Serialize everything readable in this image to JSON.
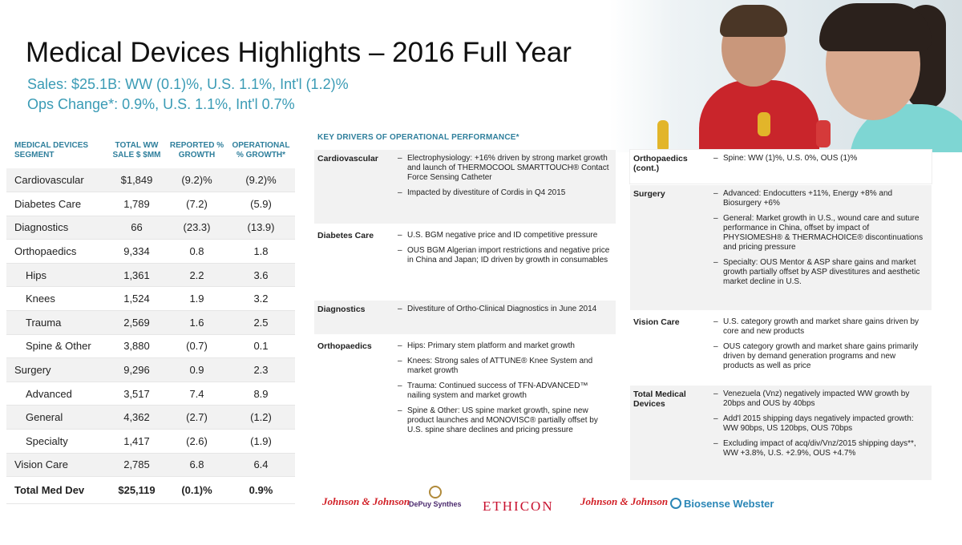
{
  "title": "Medical Devices Highlights – 2016 Full Year",
  "sales_line": "Sales: $25.1B: WW (0.1)%, U.S. 1.1%, Int'l (1.2)%",
  "ops_line": "Ops Change*: 0.9%, U.S. 1.1%, Int'l 0.7%",
  "table": {
    "headers": [
      "MEDICAL DEVICES SEGMENT",
      "TOTAL WW SALE $ $MM",
      "REPORTED % GROWTH",
      "OPERATIONAL % GROWTH*"
    ],
    "rows": [
      {
        "name": "Cardiovascular",
        "sales": "$1,849",
        "reported": "(9.2)%",
        "operational": "(9.2)%",
        "sub": false
      },
      {
        "name": "Diabetes Care",
        "sales": "1,789",
        "reported": "(7.2)",
        "operational": "(5.9)",
        "sub": false
      },
      {
        "name": "Diagnostics",
        "sales": "66",
        "reported": "(23.3)",
        "operational": "(13.9)",
        "sub": false
      },
      {
        "name": "Orthopaedics",
        "sales": "9,334",
        "reported": "0.8",
        "operational": "1.8",
        "sub": false
      },
      {
        "name": "Hips",
        "sales": "1,361",
        "reported": "2.2",
        "operational": "3.6",
        "sub": true
      },
      {
        "name": "Knees",
        "sales": "1,524",
        "reported": "1.9",
        "operational": "3.2",
        "sub": true
      },
      {
        "name": "Trauma",
        "sales": "2,569",
        "reported": "1.6",
        "operational": "2.5",
        "sub": true
      },
      {
        "name": "Spine & Other",
        "sales": "3,880",
        "reported": "(0.7)",
        "operational": "0.1",
        "sub": true
      },
      {
        "name": "Surgery",
        "sales": "9,296",
        "reported": "0.9",
        "operational": "2.3",
        "sub": false
      },
      {
        "name": "Advanced",
        "sales": "3,517",
        "reported": "7.4",
        "operational": "8.9",
        "sub": true
      },
      {
        "name": "General",
        "sales": "4,362",
        "reported": "(2.7)",
        "operational": "(1.2)",
        "sub": true
      },
      {
        "name": "Specialty",
        "sales": "1,417",
        "reported": "(2.6)",
        "operational": "(1.9)",
        "sub": true
      },
      {
        "name": "Vision Care",
        "sales": "2,785",
        "reported": "6.8",
        "operational": "6.4",
        "sub": false
      }
    ],
    "total": {
      "name": "Total Med Dev",
      "sales": "$25,119",
      "reported": "(0.1)%",
      "operational": "0.9%"
    }
  },
  "drivers_title": "KEY DRIVERS OF OPERATIONAL PERFORMANCE*",
  "drivers": [
    {
      "label": "Cardiovascular",
      "items": [
        "Electrophysiology: +16% driven by strong market growth and launch of THERMOCOOL SMARTTOUCH® Contact Force Sensing Catheter",
        "Impacted by divestiture of Cordis in Q4 2015"
      ]
    },
    {
      "label": "Diabetes Care",
      "items": [
        "U.S. BGM negative price and ID competitive pressure",
        "OUS BGM Algerian import restrictions and negative price in China and Japan; ID driven by growth in consumables"
      ]
    },
    {
      "label": "Diagnostics",
      "items": [
        "Divestiture of Ortho-Clinical Diagnostics in June 2014"
      ]
    },
    {
      "label": "Orthopaedics",
      "items": [
        "Hips: Primary stem platform and market growth",
        "Knees: Strong sales of ATTUNE® Knee System and market growth",
        "Trauma: Continued success of TFN-ADVANCED™ nailing system and market growth",
        "Spine & Other: US spine market growth, spine new product launches and MONOVISC® partially offset by U.S. spine share declines and pricing pressure"
      ]
    },
    {
      "label": "Orthopaedics (cont.)",
      "items": [
        "Spine: WW (1)%, U.S. 0%, OUS (1)%"
      ]
    },
    {
      "label": "Surgery",
      "items": [
        "Advanced: Endocutters +11%, Energy +8% and Biosurgery +6%",
        "General: Market growth in U.S., wound care and suture performance in China, offset by impact of PHYSIOMESH® & THERMACHOICE® discontinuations and pricing pressure",
        "Specialty: OUS Mentor & ASP share gains and market growth partially offset by ASP divestitures and aesthetic market decline in U.S."
      ]
    },
    {
      "label": "Vision Care",
      "items": [
        "U.S. category growth and market share gains driven by core and new products",
        "OUS category growth and market share gains primarily driven by demand generation programs and new products as well as price"
      ]
    },
    {
      "label": "Total Medical Devices",
      "items": [
        "Venezuela (Vnz) negatively impacted WW growth by 20bps and OUS by 40bps",
        "Add'l 2015 shipping days negatively impacted growth: WW 90bps, US 120bps, OUS 70bps",
        "Excluding impact of acq/div/Vnz/2015 shipping days**, WW +3.8%, U.S. +2.9%, OUS +4.7%"
      ]
    }
  ],
  "logos": {
    "jj1": "Johnson & Johnson",
    "depuy": "DePuy Synthes",
    "ethicon": "ETHICON",
    "jj2": "Johnson & Johnson",
    "bw": "Biosense Webster"
  }
}
